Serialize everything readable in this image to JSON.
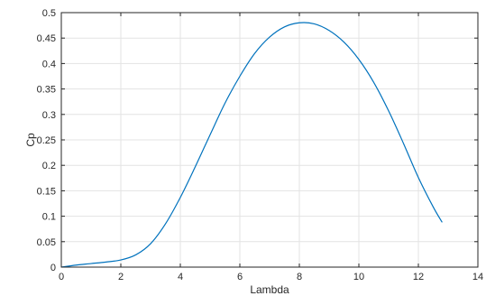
{
  "chart_data": {
    "type": "line",
    "title": "",
    "xlabel": "Lambda",
    "ylabel": "Cp",
    "xlim": [
      0,
      14
    ],
    "ylim": [
      0,
      0.5
    ],
    "xticks": [
      0,
      2,
      4,
      6,
      8,
      10,
      12,
      14
    ],
    "yticks": [
      0,
      0.05,
      0.1,
      0.15,
      0.2,
      0.25,
      0.3,
      0.35,
      0.4,
      0.45,
      0.5
    ],
    "xtick_labels": [
      "0",
      "2",
      "4",
      "6",
      "8",
      "10",
      "12",
      "14"
    ],
    "ytick_labels": [
      "0",
      "0.05",
      "0.1",
      "0.15",
      "0.2",
      "0.25",
      "0.3",
      "0.35",
      "0.4",
      "0.45",
      "0.5"
    ],
    "grid": true,
    "line_color": "#0072BD",
    "series": [
      {
        "x": [
          0,
          0.5,
          1,
          1.5,
          2,
          2.5,
          3,
          3.5,
          4,
          4.5,
          5,
          5.5,
          6,
          6.5,
          7,
          7.5,
          8,
          8.5,
          9,
          9.5,
          10,
          10.5,
          11,
          11.5,
          12,
          12.5,
          12.8
        ],
        "values": [
          0,
          0.004,
          0.007,
          0.01,
          0.014,
          0.024,
          0.046,
          0.085,
          0.137,
          0.197,
          0.26,
          0.322,
          0.375,
          0.42,
          0.452,
          0.472,
          0.48,
          0.478,
          0.465,
          0.442,
          0.408,
          0.363,
          0.307,
          0.243,
          0.176,
          0.118,
          0.088
        ]
      }
    ]
  }
}
